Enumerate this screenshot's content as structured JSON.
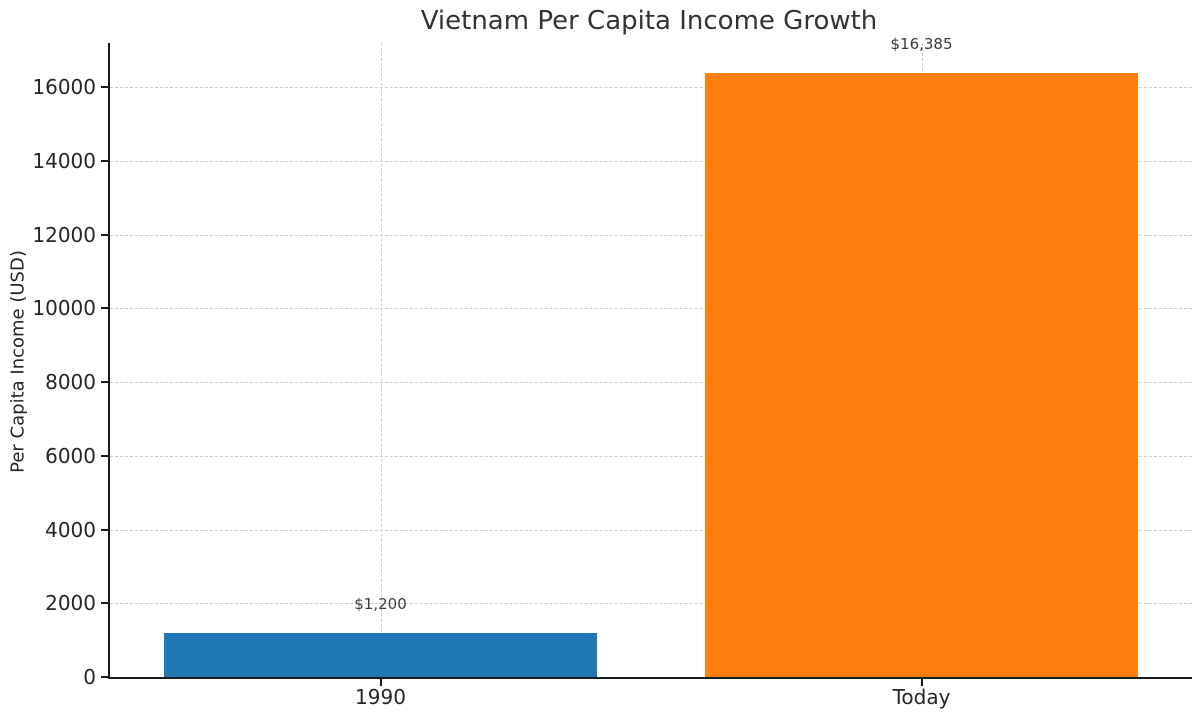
{
  "chart_data": {
    "type": "bar",
    "title": "Vietnam Per Capita Income Growth",
    "xlabel": "",
    "ylabel": "Per Capita Income (USD)",
    "categories": [
      "1990",
      "Today"
    ],
    "values": [
      1200,
      16385
    ],
    "value_labels": [
      "$1,200",
      "$16,385"
    ],
    "bar_colors": [
      "#1f77b4",
      "#ff7f0e"
    ],
    "yticks": [
      0,
      2000,
      4000,
      6000,
      8000,
      10000,
      12000,
      14000,
      16000
    ],
    "ytick_labels": [
      "0",
      "2000",
      "4000",
      "6000",
      "8000",
      "10000",
      "12000",
      "14000",
      "16000"
    ],
    "ylim": [
      0,
      17200
    ],
    "grid": "dashed-both-axes",
    "legend": "none"
  },
  "colors": {
    "background": "#ffffff",
    "grid": "#cccccc",
    "spine": "#1a1a1a",
    "tick_text": "#262626",
    "title_text": "#333333",
    "annotation_text": "#3a3a3a"
  }
}
